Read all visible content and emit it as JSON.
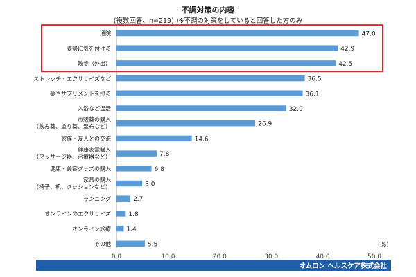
{
  "chart_data": {
    "type": "bar",
    "orientation": "horizontal",
    "title": "不調対策の内容",
    "subtitle": "(複数回答、n=219) )※不調の対策をしていると回答した方のみ",
    "unit_label": "(%)",
    "xlim": [
      0,
      50
    ],
    "x_ticks": [
      "0.0",
      "10.0",
      "20.0",
      "30.0",
      "40.0",
      "50.0"
    ],
    "categories": [
      [
        "通院"
      ],
      [
        "姿勢に気を付ける"
      ],
      [
        "散歩（外出）"
      ],
      [
        "ストレッチ・エクササイズなど"
      ],
      [
        "薬やサプリメントを摂る"
      ],
      [
        "入浴など温活"
      ],
      [
        "市販薬の購入",
        "（飲み薬、塗り薬、湿布など）"
      ],
      [
        "家族・友人との交流"
      ],
      [
        "健康家電購入",
        "（マッサージ器、治療器など）"
      ],
      [
        "健康・美容グッズの購入"
      ],
      [
        "家具の購入",
        "（椅子、机、クッションなど）"
      ],
      [
        "ランニング"
      ],
      [
        "オンラインのエクササイズ"
      ],
      [
        "オンライン診療"
      ],
      [
        "その他"
      ]
    ],
    "values": [
      47.0,
      42.9,
      42.5,
      36.5,
      36.1,
      32.9,
      26.9,
      14.6,
      7.8,
      6.8,
      5.0,
      2.7,
      1.8,
      1.4,
      5.5
    ],
    "value_labels": [
      "47.0",
      "42.9",
      "42.5",
      "36.5",
      "36.1",
      "32.9",
      "26.9",
      "14.6",
      "7.8",
      "6.8",
      "5.0",
      "2.7",
      "1.8",
      "1.4",
      "5.5"
    ],
    "highlighted_count": 3,
    "grid": false,
    "colors": {
      "bar": "#5b9bd5",
      "highlight_box": "#e0232d",
      "axis": "#888888"
    }
  },
  "footer": {
    "company": "オムロン ヘルスケア株式会社",
    "color": "#1f5fa8"
  }
}
